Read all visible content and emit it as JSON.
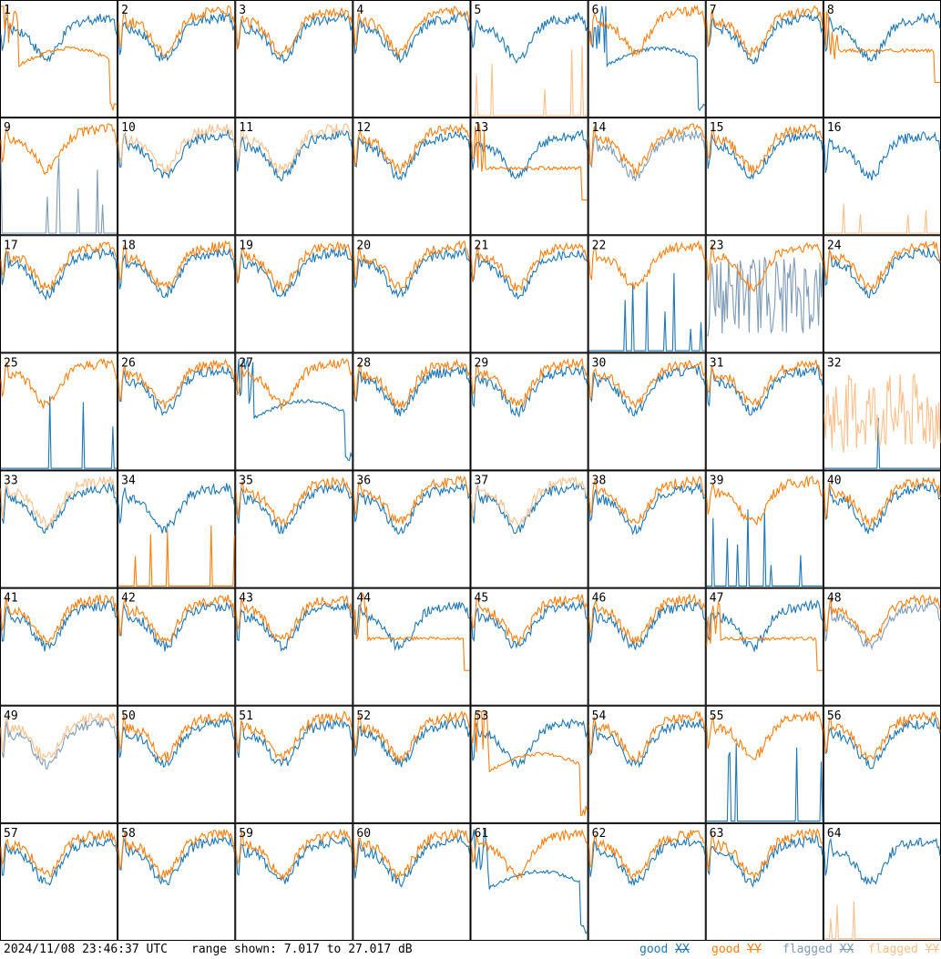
{
  "footer": {
    "timestamp": "2024/11/08 23:46:37 UTC",
    "range_prefix": "range shown:",
    "range_text": "7.017 to 27.017 dB"
  },
  "legend": [
    {
      "word": "good",
      "sym": "XX",
      "color": "#1f77b4"
    },
    {
      "word": "good",
      "sym": "YY",
      "color": "#ff7f0e"
    },
    {
      "word": "flagged",
      "sym": "XX",
      "color": "#7f9bb5"
    },
    {
      "word": "flagged",
      "sym": "YY",
      "color": "#ffbf8a"
    }
  ],
  "chart_data": {
    "type": "line",
    "layout": "8x8 small multiples",
    "panels": 64,
    "range_db": [
      7.017,
      27.017
    ],
    "colors": {
      "good_xx": "#1f77b4",
      "good_yy": "#ff7f0e",
      "flagged_xx": "#7f9bb5",
      "flagged_yy": "#ffbf8a"
    },
    "tiles": [
      {
        "id": "1",
        "xx": "good",
        "yy": "good",
        "xx_shape": "normal",
        "yy_shape": "dip"
      },
      {
        "id": "2",
        "xx": "good",
        "yy": "good",
        "xx_shape": "normal",
        "yy_shape": "normal"
      },
      {
        "id": "3",
        "xx": "good",
        "yy": "good",
        "xx_shape": "normal",
        "yy_shape": "normal"
      },
      {
        "id": "4",
        "xx": "good",
        "yy": "good",
        "xx_shape": "normal",
        "yy_shape": "normal"
      },
      {
        "id": "5",
        "xx": "good",
        "yy": "flagged",
        "xx_shape": "normal",
        "yy_shape": "spikes"
      },
      {
        "id": "6",
        "xx": "good",
        "yy": "good",
        "xx_shape": "dip",
        "yy_shape": "normal"
      },
      {
        "id": "7",
        "xx": "good",
        "yy": "good",
        "xx_shape": "normal",
        "yy_shape": "normal"
      },
      {
        "id": "8",
        "xx": "good",
        "yy": "good",
        "xx_shape": "normal",
        "yy_shape": "plateau"
      },
      {
        "id": "9",
        "xx": "flagged",
        "yy": "good",
        "xx_shape": "spikes",
        "yy_shape": "normal"
      },
      {
        "id": "10",
        "xx": "good",
        "yy": "flagged",
        "xx_shape": "normal",
        "yy_shape": "normal"
      },
      {
        "id": "11",
        "xx": "good",
        "yy": "flagged",
        "xx_shape": "normal",
        "yy_shape": "normal"
      },
      {
        "id": "12",
        "xx": "good",
        "yy": "good",
        "xx_shape": "normal",
        "yy_shape": "normal"
      },
      {
        "id": "13",
        "xx": "good",
        "yy": "good",
        "xx_shape": "normal",
        "yy_shape": "plateau"
      },
      {
        "id": "14",
        "xx": "flagged",
        "yy": "good",
        "xx_shape": "normal",
        "yy_shape": "normal"
      },
      {
        "id": "15",
        "xx": "good",
        "yy": "good",
        "xx_shape": "normal",
        "yy_shape": "normal"
      },
      {
        "id": "16",
        "xx": "good",
        "yy": "flagged",
        "xx_shape": "normal",
        "yy_shape": "spikes"
      },
      {
        "id": "17",
        "xx": "good",
        "yy": "good",
        "xx_shape": "normal",
        "yy_shape": "normal"
      },
      {
        "id": "18",
        "xx": "good",
        "yy": "good",
        "xx_shape": "normal",
        "yy_shape": "normal"
      },
      {
        "id": "19",
        "xx": "good",
        "yy": "good",
        "xx_shape": "normal",
        "yy_shape": "normal"
      },
      {
        "id": "20",
        "xx": "good",
        "yy": "good",
        "xx_shape": "normal",
        "yy_shape": "normal"
      },
      {
        "id": "21",
        "xx": "good",
        "yy": "good",
        "xx_shape": "normal",
        "yy_shape": "normal"
      },
      {
        "id": "22",
        "xx": "good",
        "yy": "good",
        "xx_shape": "spikes",
        "yy_shape": "normal"
      },
      {
        "id": "23",
        "xx": "flagged",
        "yy": "good",
        "xx_shape": "noisy",
        "yy_shape": "normal"
      },
      {
        "id": "24",
        "xx": "good",
        "yy": "good",
        "xx_shape": "normal",
        "yy_shape": "normal"
      },
      {
        "id": "25",
        "xx": "good",
        "yy": "good",
        "xx_shape": "spikes",
        "yy_shape": "normal"
      },
      {
        "id": "26",
        "xx": "good",
        "yy": "good",
        "xx_shape": "normal",
        "yy_shape": "normal"
      },
      {
        "id": "27",
        "xx": "good",
        "yy": "good",
        "xx_shape": "dip",
        "yy_shape": "normal"
      },
      {
        "id": "28",
        "xx": "good",
        "yy": "good",
        "xx_shape": "normal",
        "yy_shape": "normal"
      },
      {
        "id": "29",
        "xx": "good",
        "yy": "good",
        "xx_shape": "normal",
        "yy_shape": "normal"
      },
      {
        "id": "30",
        "xx": "good",
        "yy": "good",
        "xx_shape": "normal",
        "yy_shape": "normal"
      },
      {
        "id": "31",
        "xx": "good",
        "yy": "good",
        "xx_shape": "normal",
        "yy_shape": "normal"
      },
      {
        "id": "32",
        "xx": "good",
        "yy": "flagged",
        "xx_shape": "spikes",
        "yy_shape": "noisy"
      },
      {
        "id": "33",
        "xx": "good",
        "yy": "flagged",
        "xx_shape": "normal",
        "yy_shape": "normal"
      },
      {
        "id": "34",
        "xx": "good",
        "yy": "good",
        "xx_shape": "normal",
        "yy_shape": "spikes"
      },
      {
        "id": "35",
        "xx": "good",
        "yy": "good",
        "xx_shape": "normal",
        "yy_shape": "normal"
      },
      {
        "id": "36",
        "xx": "good",
        "yy": "good",
        "xx_shape": "normal",
        "yy_shape": "normal"
      },
      {
        "id": "37",
        "xx": "good",
        "yy": "flagged",
        "xx_shape": "normal",
        "yy_shape": "normal"
      },
      {
        "id": "38",
        "xx": "good",
        "yy": "good",
        "xx_shape": "normal",
        "yy_shape": "normal"
      },
      {
        "id": "39",
        "xx": "good",
        "yy": "good",
        "xx_shape": "spikes",
        "yy_shape": "normal"
      },
      {
        "id": "40",
        "xx": "good",
        "yy": "good",
        "xx_shape": "normal",
        "yy_shape": "normal"
      },
      {
        "id": "41",
        "xx": "good",
        "yy": "good",
        "xx_shape": "normal",
        "yy_shape": "normal"
      },
      {
        "id": "42",
        "xx": "good",
        "yy": "good",
        "xx_shape": "normal",
        "yy_shape": "normal"
      },
      {
        "id": "43",
        "xx": "good",
        "yy": "good",
        "xx_shape": "normal",
        "yy_shape": "normal"
      },
      {
        "id": "44",
        "xx": "good",
        "yy": "good",
        "xx_shape": "normal",
        "yy_shape": "plateau"
      },
      {
        "id": "45",
        "xx": "good",
        "yy": "good",
        "xx_shape": "normal",
        "yy_shape": "normal"
      },
      {
        "id": "46",
        "xx": "good",
        "yy": "good",
        "xx_shape": "normal",
        "yy_shape": "normal"
      },
      {
        "id": "47",
        "xx": "good",
        "yy": "good",
        "xx_shape": "normal",
        "yy_shape": "plateau"
      },
      {
        "id": "48",
        "xx": "flagged",
        "yy": "good",
        "xx_shape": "normal",
        "yy_shape": "normal"
      },
      {
        "id": "49",
        "xx": "flagged",
        "yy": "flagged",
        "xx_shape": "normal",
        "yy_shape": "normal"
      },
      {
        "id": "50",
        "xx": "good",
        "yy": "good",
        "xx_shape": "normal",
        "yy_shape": "normal"
      },
      {
        "id": "51",
        "xx": "good",
        "yy": "good",
        "xx_shape": "normal",
        "yy_shape": "normal"
      },
      {
        "id": "52",
        "xx": "good",
        "yy": "good",
        "xx_shape": "normal",
        "yy_shape": "normal"
      },
      {
        "id": "53",
        "xx": "good",
        "yy": "good",
        "xx_shape": "normal",
        "yy_shape": "dip"
      },
      {
        "id": "54",
        "xx": "good",
        "yy": "good",
        "xx_shape": "normal",
        "yy_shape": "normal"
      },
      {
        "id": "55",
        "xx": "good",
        "yy": "good",
        "xx_shape": "spikes",
        "yy_shape": "normal"
      },
      {
        "id": "56",
        "xx": "good",
        "yy": "good",
        "xx_shape": "normal",
        "yy_shape": "normal"
      },
      {
        "id": "57",
        "xx": "good",
        "yy": "good",
        "xx_shape": "normal",
        "yy_shape": "normal"
      },
      {
        "id": "58",
        "xx": "good",
        "yy": "good",
        "xx_shape": "normal",
        "yy_shape": "normal"
      },
      {
        "id": "59",
        "xx": "good",
        "yy": "good",
        "xx_shape": "normal",
        "yy_shape": "normal"
      },
      {
        "id": "60",
        "xx": "good",
        "yy": "good",
        "xx_shape": "normal",
        "yy_shape": "normal"
      },
      {
        "id": "61",
        "xx": "good",
        "yy": "good",
        "xx_shape": "dip",
        "yy_shape": "normal"
      },
      {
        "id": "62",
        "xx": "good",
        "yy": "good",
        "xx_shape": "normal",
        "yy_shape": "normal"
      },
      {
        "id": "63",
        "xx": "good",
        "yy": "good",
        "xx_shape": "normal",
        "yy_shape": "normal"
      },
      {
        "id": "64",
        "xx": "good",
        "yy": "flagged",
        "xx_shape": "normal",
        "yy_shape": "spikes"
      }
    ]
  }
}
